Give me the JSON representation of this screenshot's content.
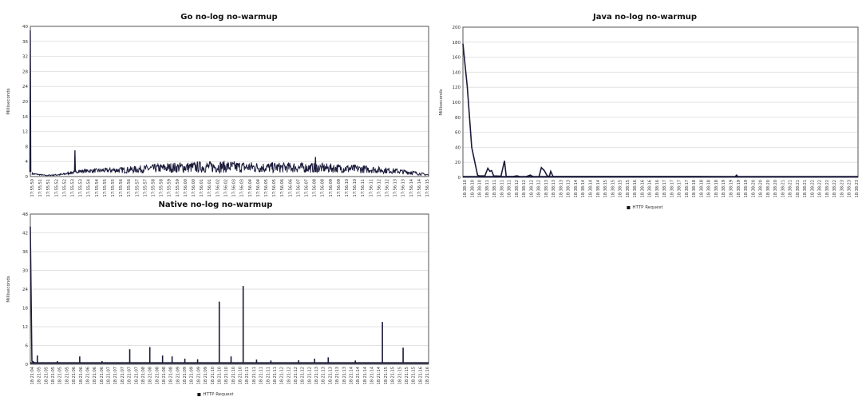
{
  "chart_data": [
    {
      "type": "line",
      "title": "Go no-log no-warmup",
      "ylabel": "Milliseconds",
      "xlabel": "",
      "ylim": [
        0,
        40
      ],
      "yticks": [
        0,
        4,
        8,
        12,
        16,
        20,
        24,
        28,
        32,
        36,
        40
      ],
      "xlim_seconds": [
        0,
        25
      ],
      "grid": true,
      "legend": null,
      "series_color": "#1a1a3a",
      "x_tick_labels": [
        "17:55:50",
        "17:55:51",
        "17:55:51",
        "17:55:52",
        "17:55:52",
        "17:55:53",
        "17:55:53",
        "17:55:54",
        "17:55:54",
        "17:55:55",
        "17:55:55",
        "17:55:56",
        "17:55:56",
        "17:55:57",
        "17:55:57",
        "17:55:58",
        "17:55:58",
        "17:55:59",
        "17:55:59",
        "17:56:00",
        "17:56:00",
        "17:56:01",
        "17:56:01",
        "17:56:02",
        "17:56:02",
        "17:56:03",
        "17:56:03",
        "17:56:04",
        "17:56:04",
        "17:56:05",
        "17:56:05",
        "17:56:06",
        "17:56:06",
        "17:56:07",
        "17:56:07",
        "17:56:08",
        "17:56:08",
        "17:56:09",
        "17:56:09",
        "17:56:10",
        "17:56:10",
        "17:56:11",
        "17:56:11",
        "17:56:12",
        "17:56:12",
        "17:56:13",
        "17:56:13",
        "17:56:14",
        "17:56:14",
        "17:56:15"
      ],
      "band": {
        "t": [
          0.1,
          1,
          2,
          3,
          4.5,
          6,
          7.5,
          9,
          10.5,
          12,
          13.5,
          15,
          16.5,
          18,
          19.5,
          21,
          22.5,
          24,
          25
        ],
        "lower": [
          0.5,
          0.2,
          0.3,
          1.0,
          1.0,
          0.9,
          1.0,
          1.0,
          1.0,
          1.0,
          1.0,
          1.0,
          1.0,
          1.0,
          1.0,
          0.9,
          0.8,
          0.5,
          0.2
        ],
        "upper": [
          1.0,
          0.4,
          0.8,
          1.8,
          2.2,
          2.6,
          3.2,
          3.8,
          4.0,
          4.2,
          4.0,
          3.8,
          3.8,
          3.6,
          3.4,
          3.0,
          2.4,
          1.6,
          0.6
        ]
      },
      "spikes": [
        [
          0,
          39
        ],
        [
          2.8,
          7
        ],
        [
          17.9,
          5.2
        ]
      ]
    },
    {
      "type": "line",
      "title": "Java no-log no-warmup",
      "ylabel": "Milliseconds",
      "xlabel": "",
      "ylim": [
        0,
        200
      ],
      "yticks": [
        0,
        20,
        40,
        60,
        80,
        100,
        120,
        140,
        160,
        180,
        200
      ],
      "xlim_seconds": [
        0,
        13.5
      ],
      "grid": true,
      "legend": "HTTP Request",
      "legend_position": "bottom-center",
      "series_color": "#1a1a3a",
      "x_tick_labels": [
        "18:38:10",
        "18:38:10",
        "18:38:10",
        "18:38:11",
        "18:38:11",
        "18:38:11",
        "18:38:11",
        "18:38:12",
        "18:38:12",
        "18:38:12",
        "18:38:12",
        "18:38:13",
        "18:38:13",
        "18:38:13",
        "18:38:13",
        "18:38:14",
        "18:38:14",
        "18:38:14",
        "18:38:14",
        "18:38:15",
        "18:38:15",
        "18:38:15",
        "18:38:15",
        "18:38:16",
        "18:38:16",
        "18:38:16",
        "18:38:16",
        "18:38:17",
        "18:38:17",
        "18:38:17",
        "18:38:17",
        "18:38:18",
        "18:38:18",
        "18:38:18",
        "18:38:18",
        "18:38:19",
        "18:38:19",
        "18:38:19",
        "18:38:19",
        "18:38:20",
        "18:38:20",
        "18:38:20",
        "18:38:20",
        "18:38:21",
        "18:38:21",
        "18:38:21",
        "18:38:21",
        "18:38:22",
        "18:38:22",
        "18:38:22",
        "18:38:22",
        "18:38:23",
        "18:38:23",
        "18:38:23"
      ],
      "points": [
        [
          0,
          178
        ],
        [
          0.15,
          120
        ],
        [
          0.5,
          3
        ],
        [
          0.3,
          40
        ],
        [
          0.55,
          2
        ],
        [
          0.75,
          2
        ],
        [
          0.85,
          12
        ],
        [
          0.92,
          8
        ],
        [
          0.98,
          9
        ],
        [
          1.05,
          2
        ],
        [
          1.3,
          1.5
        ],
        [
          1.42,
          22
        ],
        [
          1.48,
          1
        ],
        [
          1.7,
          1
        ],
        [
          1.85,
          2
        ],
        [
          1.95,
          0.8
        ],
        [
          2.15,
          0.8
        ],
        [
          2.3,
          3
        ],
        [
          2.4,
          0.8
        ],
        [
          2.6,
          0.8
        ],
        [
          2.68,
          13
        ],
        [
          2.78,
          9
        ],
        [
          2.88,
          2
        ],
        [
          2.95,
          1
        ],
        [
          3.0,
          8
        ],
        [
          3.08,
          1
        ],
        [
          5,
          1
        ],
        [
          8,
          1
        ],
        [
          9.3,
          0.8
        ],
        [
          9.35,
          3
        ],
        [
          9.4,
          0.8
        ],
        [
          13.5,
          0.8
        ]
      ]
    },
    {
      "type": "line",
      "title": "Native no-log no-warmup",
      "ylabel": "Milliseconds",
      "xlabel": "",
      "ylim": [
        0,
        48
      ],
      "yticks": [
        0,
        6,
        12,
        18,
        24,
        30,
        36,
        42,
        48
      ],
      "xlim_seconds": [
        0,
        12.5
      ],
      "grid": true,
      "legend": "HTTP Request",
      "legend_position": "bottom-center",
      "series_color": "#1a1a3a",
      "x_tick_labels": [
        "18:21:04",
        "18:21:05",
        "18:21:05",
        "18:21:05",
        "18:21:05",
        "18:21:05",
        "18:21:06",
        "18:21:06",
        "18:21:06",
        "18:21:06",
        "18:21:06",
        "18:21:07",
        "18:21:07",
        "18:21:07",
        "18:21:07",
        "18:21:07",
        "18:21:08",
        "18:21:08",
        "18:21:08",
        "18:21:08",
        "18:21:08",
        "18:21:09",
        "18:21:09",
        "18:21:09",
        "18:21:09",
        "18:21:09",
        "18:21:10",
        "18:21:10",
        "18:21:10",
        "18:21:10",
        "18:21:10",
        "18:21:11",
        "18:21:11",
        "18:21:11",
        "18:21:11",
        "18:21:11",
        "18:21:12",
        "18:21:12",
        "18:21:12",
        "18:21:12",
        "18:21:12",
        "18:21:13",
        "18:21:13",
        "18:21:13",
        "18:21:13",
        "18:21:13",
        "18:21:14",
        "18:21:14",
        "18:21:14",
        "18:21:14",
        "18:21:14",
        "18:21:15",
        "18:21:15",
        "18:21:15",
        "18:21:15",
        "18:21:15",
        "18:21:16",
        "18:21:16"
      ],
      "baseline": 0.4,
      "spikes": [
        [
          0,
          44
        ],
        [
          0.22,
          2.8
        ],
        [
          0.85,
          1
        ],
        [
          1.55,
          2.5
        ],
        [
          2.25,
          1
        ],
        [
          3.12,
          4.8
        ],
        [
          3.75,
          5.5
        ],
        [
          4.15,
          2.8
        ],
        [
          4.45,
          2.5
        ],
        [
          4.85,
          1.8
        ],
        [
          5.25,
          1.6
        ],
        [
          5.93,
          20
        ],
        [
          6.3,
          2.5
        ],
        [
          6.68,
          25
        ],
        [
          7.1,
          1.5
        ],
        [
          7.55,
          1.2
        ],
        [
          8.42,
          1.3
        ],
        [
          8.92,
          1.8
        ],
        [
          9.35,
          2.2
        ],
        [
          10.2,
          1.2
        ],
        [
          11.05,
          13.5
        ],
        [
          11.7,
          5.3
        ]
      ]
    }
  ]
}
